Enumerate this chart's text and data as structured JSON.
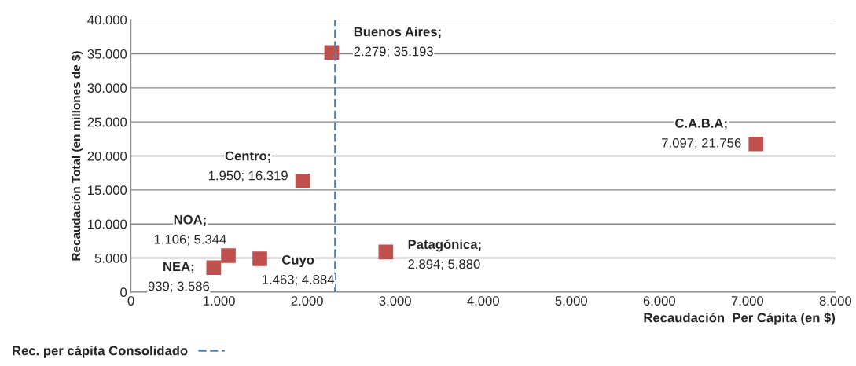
{
  "chart_data": {
    "type": "scatter",
    "xlabel": "Recaudación  Per Cápita (en $)",
    "ylabel": "Recaudación Total (en millones de $)",
    "x": [
      2279,
      7097,
      1950,
      1106,
      939,
      1463,
      2894
    ],
    "series": [
      {
        "color": "#c0504d",
        "values": [
          35193,
          21756,
          16319,
          5344,
          3586,
          4884,
          5880
        ]
      }
    ],
    "marker": "square",
    "annotations": [
      {
        "text": "Buenos Aires;\n2.279; 35.193",
        "x": 2279,
        "y": 35193
      },
      {
        "text": "C.A.B.A;\n7.097; 21.756",
        "x": 7097,
        "y": 21756
      },
      {
        "text": "Centro;\n1.950; 16.319",
        "x": 1950,
        "y": 16319
      },
      {
        "text": "NOA;\n1.106; 5.344",
        "x": 1106,
        "y": 5344
      },
      {
        "text": "NEA;\n939; 3.586",
        "x": 939,
        "y": 3586
      },
      {
        "text": "Cuyo\n1.463; 4.884",
        "x": 1463,
        "y": 4884
      },
      {
        "text": "Patagónica;\n2.894; 5.880",
        "x": 2894,
        "y": 5880
      }
    ],
    "ref_lines": [
      {
        "axis": "x",
        "value": 2320,
        "label": "Rec. per cápita Consolidado",
        "color": "#4f81bd",
        "line_style": "dashed"
      }
    ],
    "xlim": [
      0,
      8000
    ],
    "xticks": [
      0,
      {
        "value": 1000,
        "label": "1.000"
      },
      {
        "value": 2000,
        "label": "2.000"
      },
      {
        "value": 3000,
        "label": "3.000"
      },
      {
        "value": 4000,
        "label": "4.000"
      },
      {
        "value": 5000,
        "label": "5.000"
      },
      {
        "value": 6000,
        "label": "6.000"
      },
      {
        "value": 7000,
        "label": "7.000"
      },
      {
        "value": 8000,
        "label": "8.000"
      }
    ],
    "ylim": [
      0,
      40000
    ],
    "yticks": [
      0,
      {
        "value": 5000,
        "label": "5.000"
      },
      {
        "value": 10000,
        "label": "10.000"
      },
      {
        "value": 15000,
        "label": "15.000"
      },
      {
        "value": 20000,
        "label": "20.000"
      },
      {
        "value": 25000,
        "label": "25.000"
      },
      {
        "value": 30000,
        "label": "30.000"
      },
      {
        "value": 35000,
        "label": "35.000"
      },
      {
        "value": 40000,
        "label": "40.000"
      }
    ],
    "grid": "y",
    "legend": "bottom left"
  }
}
